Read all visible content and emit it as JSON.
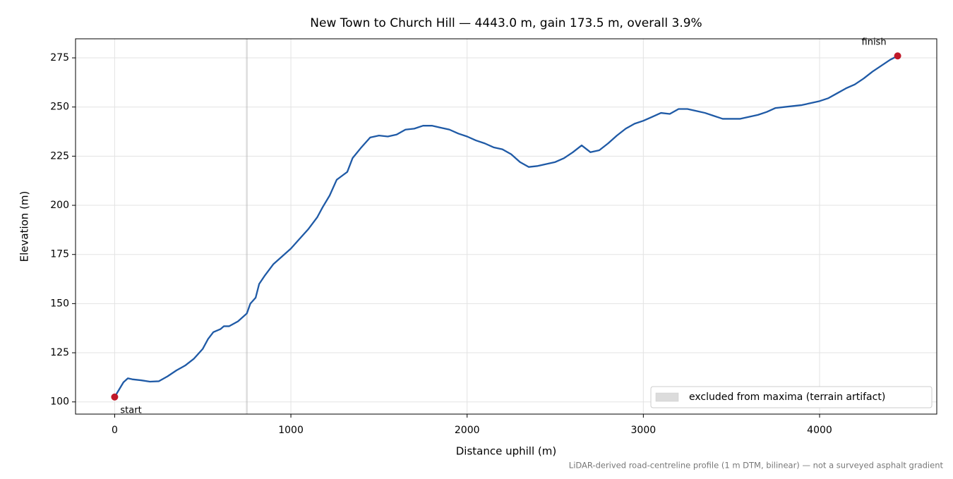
{
  "chart_data": {
    "type": "line",
    "title": "New Town to Church Hill — 4443.0 m, gain 173.5 m, overall 3.9%",
    "xlabel": "Distance uphill (m)",
    "ylabel": "Elevation (m)",
    "footnote": "LiDAR-derived road-centreline profile (1 m DTM, bilinear) — not a surveyed asphalt gradient",
    "color": "#1f5aa6",
    "x": [
      0,
      50,
      75,
      100,
      150,
      200,
      250,
      300,
      350,
      400,
      450,
      500,
      530,
      560,
      600,
      620,
      650,
      700,
      750,
      770,
      800,
      820,
      850,
      900,
      950,
      1000,
      1050,
      1100,
      1150,
      1180,
      1220,
      1260,
      1290,
      1320,
      1350,
      1400,
      1450,
      1500,
      1550,
      1600,
      1650,
      1700,
      1750,
      1800,
      1850,
      1900,
      1950,
      2000,
      2050,
      2100,
      2150,
      2200,
      2250,
      2300,
      2350,
      2400,
      2450,
      2500,
      2550,
      2600,
      2650,
      2700,
      2750,
      2800,
      2850,
      2900,
      2950,
      3000,
      3050,
      3100,
      3150,
      3200,
      3250,
      3300,
      3350,
      3400,
      3450,
      3500,
      3550,
      3600,
      3650,
      3700,
      3750,
      3800,
      3850,
      3900,
      3950,
      4000,
      4050,
      4100,
      4150,
      4200,
      4250,
      4300,
      4350,
      4400,
      4443
    ],
    "values": [
      102.5,
      110,
      112,
      111.5,
      111,
      110.3,
      110.5,
      113,
      116,
      118.5,
      122,
      127,
      132,
      135.5,
      137,
      138.5,
      138.5,
      141,
      145,
      150,
      153,
      160,
      164,
      170,
      174,
      178,
      183,
      188,
      194,
      199,
      205,
      213,
      215,
      217,
      224,
      229.5,
      234.5,
      235.5,
      235,
      236,
      238.5,
      239,
      240.5,
      240.5,
      239.5,
      238.5,
      236.5,
      235,
      233,
      231.5,
      229.5,
      228.5,
      226,
      222,
      219.5,
      220,
      221,
      222,
      224,
      227,
      230.5,
      227,
      228,
      231.5,
      235.5,
      239,
      241.5,
      243,
      245,
      247,
      246.5,
      249,
      249,
      248,
      247,
      245.5,
      244,
      244,
      244,
      245,
      246,
      247.5,
      249.5,
      250,
      250.5,
      251,
      252,
      253,
      254.5,
      257,
      259.5,
      261.5,
      264.5,
      268,
      271,
      274,
      276
    ],
    "endpoints": {
      "x": [
        0,
        4443
      ],
      "values": [
        102.5,
        276
      ],
      "labels": [
        "start",
        "finish"
      ],
      "color": "#c0192a"
    },
    "band": {
      "label": "excluded from maxima (terrain artifact)",
      "range": [
        745,
        755
      ],
      "color": "#bbbbbb"
    },
    "legend": "lower right",
    "grid": true,
    "xlim": [
      -222,
      4665
    ],
    "ylim": [
      93.8,
      284.7
    ],
    "xticks": [
      0,
      1000,
      2000,
      3000,
      4000
    ],
    "yticks": [
      100,
      125,
      150,
      175,
      200,
      225,
      250,
      275
    ]
  }
}
